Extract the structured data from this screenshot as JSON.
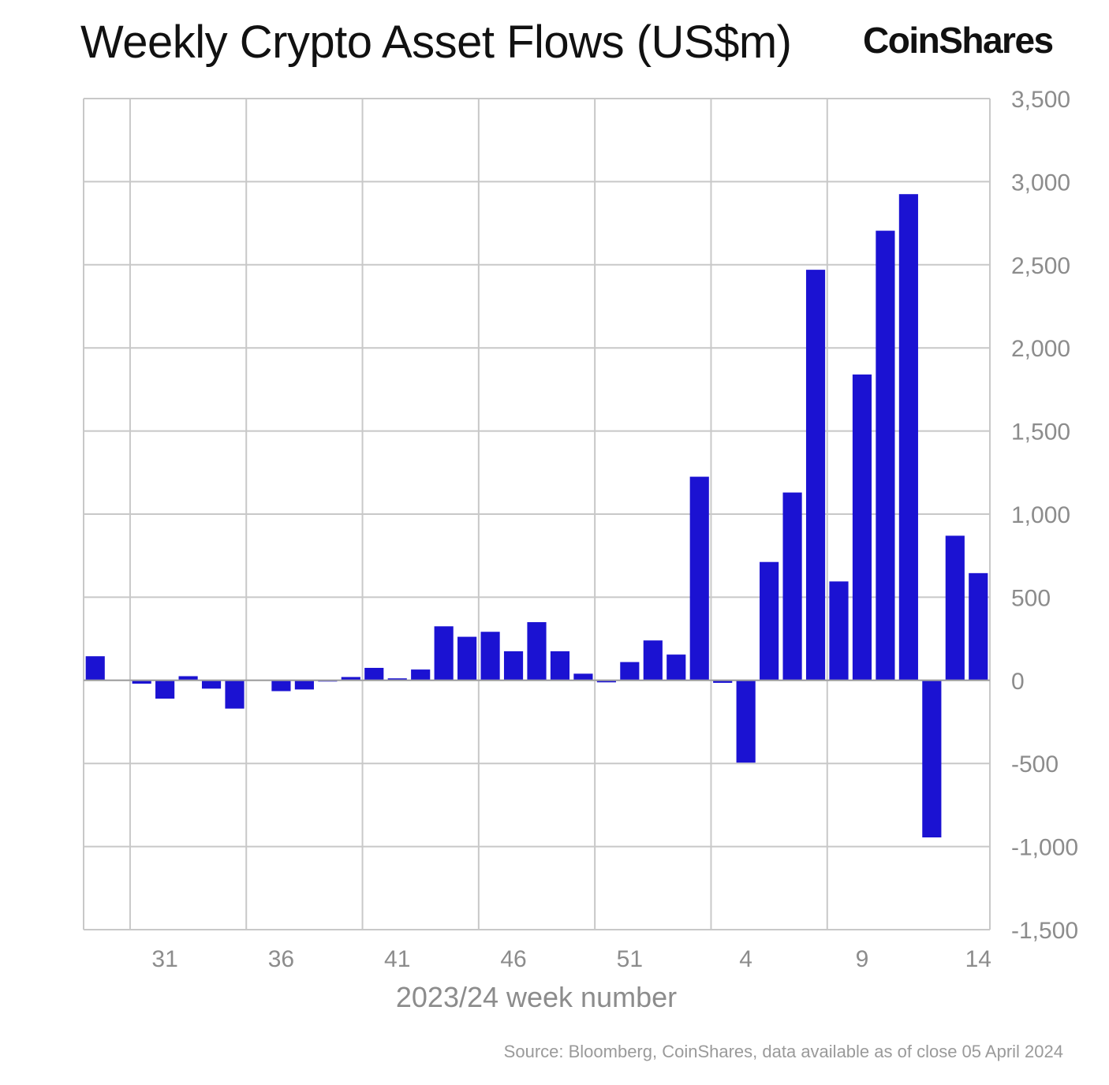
{
  "title": "Weekly Crypto Asset Flows (US$m)",
  "brand": "CoinShares",
  "source": "Source: Bloomberg, CoinShares, data available as of close 05 April 2024",
  "colors": {
    "bar": "#1b12d2",
    "grid": "#c8c8c8",
    "tick_text": "#8c8c8c"
  },
  "chart_data": {
    "type": "bar",
    "xlabel": "2023/24 week number",
    "ylabel": "",
    "ylim": [
      -1500,
      3500
    ],
    "yticks": [
      3500,
      3000,
      2500,
      2000,
      1500,
      1000,
      500,
      0,
      -500,
      -1000,
      -1500
    ],
    "ytick_labels": [
      "3,500",
      "3,000",
      "2,500",
      "2,000",
      "1,500",
      "1,000",
      "500",
      "0",
      "-500",
      "-1,000",
      "-1,500"
    ],
    "y_axis_side": "right",
    "grid": true,
    "categories": [
      "28",
      "29",
      "30",
      "31",
      "32",
      "33",
      "34",
      "35",
      "36",
      "37",
      "38",
      "39",
      "40",
      "41",
      "42",
      "43",
      "44",
      "45",
      "46",
      "47",
      "48",
      "49",
      "50",
      "51",
      "52",
      "1",
      "2",
      "3",
      "4",
      "5",
      "6",
      "7",
      "8",
      "9",
      "10",
      "11",
      "12",
      "13",
      "14"
    ],
    "xtick_labels": [
      "31",
      "36",
      "41",
      "46",
      "51",
      "4",
      "9",
      "14"
    ],
    "values": [
      145,
      0,
      -20,
      -110,
      25,
      -50,
      -170,
      0,
      -65,
      -55,
      -5,
      20,
      75,
      12,
      65,
      325,
      262,
      292,
      175,
      350,
      175,
      40,
      -12,
      110,
      240,
      155,
      1225,
      -15,
      -495,
      712,
      1130,
      2470,
      595,
      1840,
      2705,
      2925,
      -945,
      870,
      645
    ]
  }
}
